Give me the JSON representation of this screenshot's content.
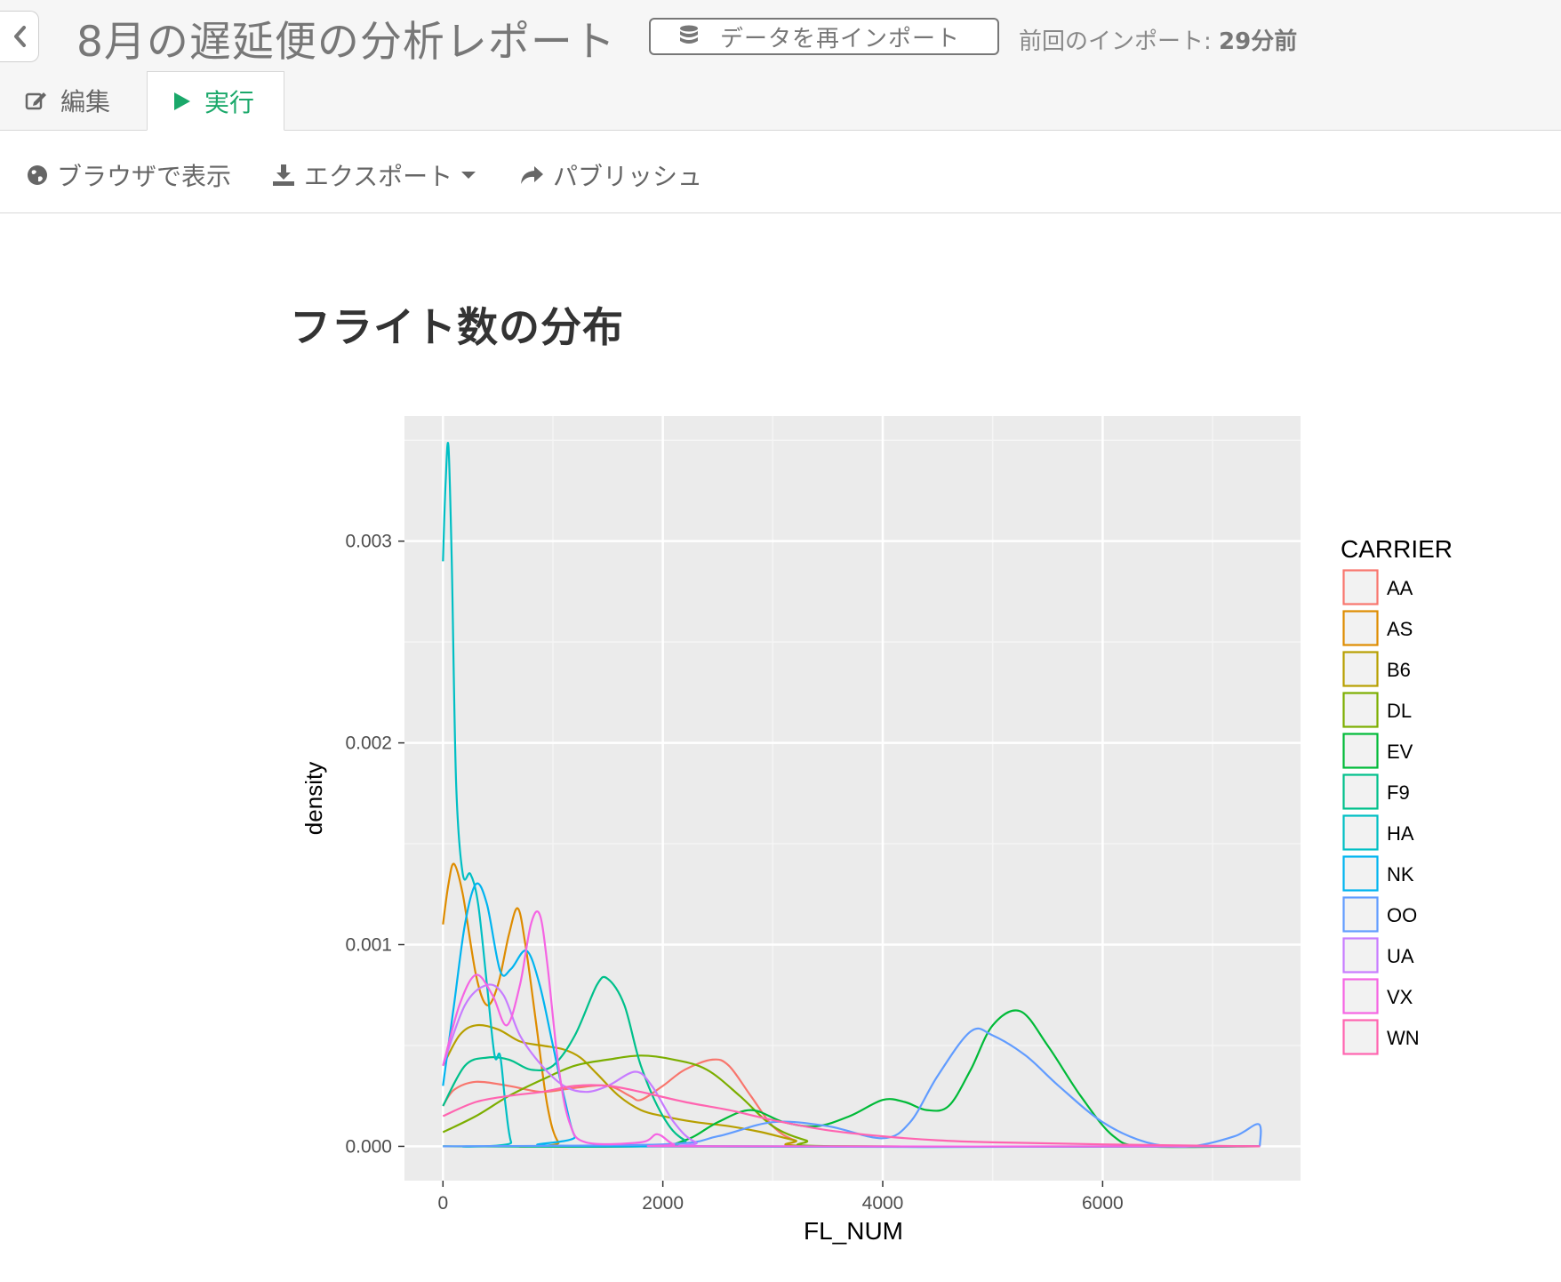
{
  "header": {
    "title": "8月の遅延便の分析レポート",
    "reimport_label": "データを再インポート",
    "last_import_prefix": "前回のインポート: ",
    "last_import_value": "29分前"
  },
  "tabs": [
    {
      "label": "編集",
      "active": false
    },
    {
      "label": "実行",
      "active": true
    }
  ],
  "toolbar": {
    "view_browser": "ブラウザで表示",
    "export": "エクスポート",
    "publish": "パブリッシュ"
  },
  "content": {
    "section_title": "フライト数の分布"
  },
  "colors": {
    "accent_green": "#1aa86a",
    "panel_bg": "#ebebeb"
  },
  "chart_data": {
    "type": "line",
    "subtype": "density",
    "xlabel": "FL_NUM",
    "ylabel": "density",
    "legend_title": "CARRIER",
    "legend_position": "right",
    "xlim": [
      -350,
      7800
    ],
    "ylim": [
      -0.00017,
      0.00362
    ],
    "x_ticks": [
      0,
      2000,
      4000,
      6000
    ],
    "x_tick_labels": [
      "0",
      "2000",
      "4000",
      "6000"
    ],
    "y_ticks": [
      0.0,
      0.001,
      0.002,
      0.003
    ],
    "y_tick_labels": [
      "0.000",
      "0.001",
      "0.002",
      "0.003"
    ],
    "grid": true,
    "series": [
      {
        "name": "AA",
        "color": "#F8766D",
        "points": [
          [
            0,
            0.0002
          ],
          [
            100,
            0.00028
          ],
          [
            300,
            0.00032
          ],
          [
            600,
            0.0003
          ],
          [
            900,
            0.00027
          ],
          [
            1200,
            0.00029
          ],
          [
            1500,
            0.0003
          ],
          [
            1700,
            0.00025
          ],
          [
            1800,
            0.00023
          ],
          [
            2000,
            0.0003
          ],
          [
            2200,
            0.00038
          ],
          [
            2450,
            0.00043
          ],
          [
            2600,
            0.0004
          ],
          [
            2800,
            0.00025
          ],
          [
            3000,
            0.0001
          ],
          [
            3200,
            3e-05
          ],
          [
            3500,
            0.0
          ],
          [
            7430,
            0.0
          ]
        ]
      },
      {
        "name": "AS",
        "color": "#DE8C00",
        "points": [
          [
            0,
            0.0011
          ],
          [
            50,
            0.0013
          ],
          [
            100,
            0.0014
          ],
          [
            180,
            0.00125
          ],
          [
            300,
            0.00085
          ],
          [
            400,
            0.0007
          ],
          [
            500,
            0.0008
          ],
          [
            600,
            0.00105
          ],
          [
            680,
            0.00118
          ],
          [
            750,
            0.001
          ],
          [
            850,
            0.0006
          ],
          [
            950,
            0.0002
          ],
          [
            1050,
            2e-05
          ],
          [
            1200,
            0.0
          ],
          [
            7430,
            0.0
          ]
        ]
      },
      {
        "name": "B6",
        "color": "#B79F00",
        "points": [
          [
            0,
            0.0004
          ],
          [
            150,
            0.00055
          ],
          [
            300,
            0.0006
          ],
          [
            500,
            0.00058
          ],
          [
            700,
            0.00052
          ],
          [
            900,
            0.0005
          ],
          [
            1100,
            0.00048
          ],
          [
            1250,
            0.00044
          ],
          [
            1400,
            0.00036
          ],
          [
            1600,
            0.00025
          ],
          [
            1800,
            0.00018
          ],
          [
            2000,
            0.00015
          ],
          [
            2300,
            0.00012
          ],
          [
            2600,
            0.0001
          ],
          [
            2900,
            7e-05
          ],
          [
            3200,
            3e-05
          ],
          [
            3500,
            0.0
          ],
          [
            7430,
            0.0
          ]
        ]
      },
      {
        "name": "DL",
        "color": "#7CAE00",
        "points": [
          [
            0,
            7e-05
          ],
          [
            300,
            0.00015
          ],
          [
            600,
            0.00025
          ],
          [
            900,
            0.00033
          ],
          [
            1200,
            0.0004
          ],
          [
            1500,
            0.00043
          ],
          [
            1800,
            0.00045
          ],
          [
            2100,
            0.00043
          ],
          [
            2400,
            0.00038
          ],
          [
            2700,
            0.00025
          ],
          [
            3000,
            0.0001
          ],
          [
            3300,
            3e-05
          ],
          [
            3600,
            0.0
          ],
          [
            7430,
            0.0
          ]
        ]
      },
      {
        "name": "EV",
        "color": "#00BA38",
        "points": [
          [
            0,
            0.0
          ],
          [
            1800,
            0.0
          ],
          [
            2200,
            3e-05
          ],
          [
            2500,
            0.00012
          ],
          [
            2800,
            0.00018
          ],
          [
            3100,
            0.00012
          ],
          [
            3400,
            0.0001
          ],
          [
            3700,
            0.00015
          ],
          [
            4000,
            0.00023
          ],
          [
            4200,
            0.00022
          ],
          [
            4400,
            0.00018
          ],
          [
            4600,
            0.0002
          ],
          [
            4800,
            0.00038
          ],
          [
            5000,
            0.0006
          ],
          [
            5250,
            0.00067
          ],
          [
            5500,
            0.0005
          ],
          [
            5800,
            0.00025
          ],
          [
            6100,
            5e-05
          ],
          [
            6400,
            0.0
          ],
          [
            7430,
            0.0
          ]
        ]
      },
      {
        "name": "F9",
        "color": "#00C08B",
        "points": [
          [
            0,
            0.0002
          ],
          [
            200,
            0.0004
          ],
          [
            400,
            0.00044
          ],
          [
            600,
            0.00043
          ],
          [
            800,
            0.00038
          ],
          [
            1000,
            0.0004
          ],
          [
            1200,
            0.00055
          ],
          [
            1400,
            0.0008
          ],
          [
            1500,
            0.00083
          ],
          [
            1650,
            0.0007
          ],
          [
            1800,
            0.0004
          ],
          [
            2000,
            0.00015
          ],
          [
            2200,
            3e-05
          ],
          [
            2500,
            0.0
          ],
          [
            7430,
            0.0
          ]
        ]
      },
      {
        "name": "HA",
        "color": "#00BFC4",
        "points": [
          [
            0,
            0.0029
          ],
          [
            25,
            0.0033
          ],
          [
            50,
            0.00347
          ],
          [
            80,
            0.0029
          ],
          [
            120,
            0.0018
          ],
          [
            180,
            0.00135
          ],
          [
            250,
            0.00135
          ],
          [
            320,
            0.0012
          ],
          [
            400,
            0.0008
          ],
          [
            470,
            0.00045
          ],
          [
            520,
            0.00045
          ],
          [
            570,
            0.0002
          ],
          [
            620,
            2e-05
          ],
          [
            700,
            0.0
          ],
          [
            7430,
            0.0
          ]
        ]
      },
      {
        "name": "NK",
        "color": "#00B4F0",
        "points": [
          [
            0,
            0.0003
          ],
          [
            100,
            0.0007
          ],
          [
            200,
            0.0011
          ],
          [
            300,
            0.0013
          ],
          [
            400,
            0.0012
          ],
          [
            520,
            0.00087
          ],
          [
            620,
            0.00088
          ],
          [
            760,
            0.00097
          ],
          [
            880,
            0.0008
          ],
          [
            1000,
            0.0005
          ],
          [
            1100,
            0.00025
          ],
          [
            1200,
            5e-05
          ],
          [
            1350,
            0.0
          ],
          [
            7430,
            0.0
          ]
        ]
      },
      {
        "name": "OO",
        "color": "#619CFF",
        "points": [
          [
            0,
            0.0
          ],
          [
            2000,
            1e-05
          ],
          [
            2500,
            5e-05
          ],
          [
            3000,
            0.00012
          ],
          [
            3500,
            0.0001
          ],
          [
            4000,
            4e-05
          ],
          [
            4250,
            0.00012
          ],
          [
            4500,
            0.00035
          ],
          [
            4800,
            0.00057
          ],
          [
            5000,
            0.00055
          ],
          [
            5300,
            0.00045
          ],
          [
            5600,
            0.0003
          ],
          [
            6000,
            0.00012
          ],
          [
            6400,
            2e-05
          ],
          [
            6800,
            0.0
          ],
          [
            7200,
            5e-05
          ],
          [
            7420,
            0.00011
          ],
          [
            7430,
            0.0
          ]
        ]
      },
      {
        "name": "UA",
        "color": "#C77CFF",
        "points": [
          [
            0,
            0.0004
          ],
          [
            200,
            0.0007
          ],
          [
            400,
            0.0008
          ],
          [
            550,
            0.00075
          ],
          [
            700,
            0.00055
          ],
          [
            900,
            0.0004
          ],
          [
            1100,
            0.0003
          ],
          [
            1300,
            0.00027
          ],
          [
            1500,
            0.0003
          ],
          [
            1750,
            0.00037
          ],
          [
            1900,
            0.0003
          ],
          [
            2100,
            0.00012
          ],
          [
            2300,
            2e-05
          ],
          [
            2600,
            0.0
          ],
          [
            7430,
            0.0
          ]
        ]
      },
      {
        "name": "VX",
        "color": "#F564E3",
        "points": [
          [
            0,
            0.0004
          ],
          [
            150,
            0.0007
          ],
          [
            300,
            0.00085
          ],
          [
            450,
            0.00075
          ],
          [
            580,
            0.0006
          ],
          [
            700,
            0.0008
          ],
          [
            800,
            0.0011
          ],
          [
            880,
            0.00115
          ],
          [
            950,
            0.0009
          ],
          [
            1050,
            0.0004
          ],
          [
            1150,
            0.00012
          ],
          [
            1300,
            2e-05
          ],
          [
            1800,
            2e-05
          ],
          [
            1950,
            6e-05
          ],
          [
            2100,
            1e-05
          ],
          [
            2300,
            0.0
          ],
          [
            7430,
            0.0
          ]
        ]
      },
      {
        "name": "WN",
        "color": "#FF64B0",
        "points": [
          [
            0,
            0.00015
          ],
          [
            300,
            0.00022
          ],
          [
            600,
            0.00025
          ],
          [
            900,
            0.00027
          ],
          [
            1200,
            0.0003
          ],
          [
            1500,
            0.0003
          ],
          [
            1800,
            0.00027
          ],
          [
            2200,
            0.00022
          ],
          [
            2600,
            0.00018
          ],
          [
            3000,
            0.00013
          ],
          [
            3500,
            8e-05
          ],
          [
            4000,
            5e-05
          ],
          [
            4500,
            3e-05
          ],
          [
            5000,
            2e-05
          ],
          [
            6000,
            1e-05
          ],
          [
            7430,
            0.0
          ]
        ]
      }
    ]
  }
}
